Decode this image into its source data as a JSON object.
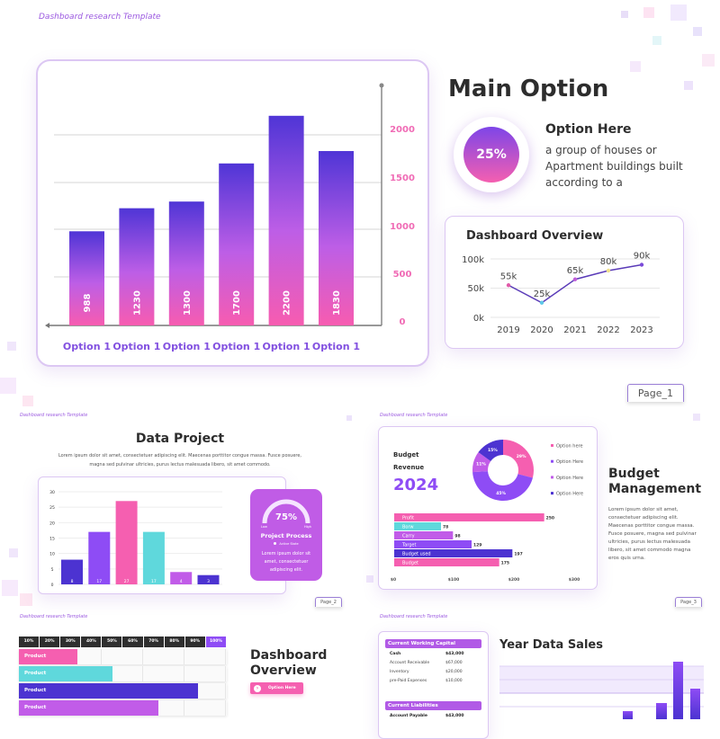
{
  "colors": {
    "pink": "#f55fb0",
    "purple": "#8e4cf5",
    "indigo": "#4c33d1",
    "cyan": "#5fd8dc",
    "violet": "#c15ce8",
    "dark": "#2d2d2d"
  },
  "template_label": "Dashboard research Template",
  "slide1": {
    "title": "Main Option",
    "gauge_value": "25%",
    "option_title": "Option Here",
    "option_text": [
      "a group of houses or",
      "Apartment buildings built",
      "according to a"
    ],
    "page": "Page_1",
    "chart_data": {
      "type": "bar",
      "categories": [
        "Option 1",
        "Option 1",
        "Option 1",
        "Option 1",
        "Option 1",
        "Option 1"
      ],
      "values": [
        988,
        1230,
        1300,
        1700,
        2200,
        1830
      ],
      "yticks": [
        "2000",
        "1500",
        "1000",
        "500",
        "0"
      ],
      "ylim": [
        0,
        2000
      ],
      "grid": true
    },
    "overview": {
      "title": "Dashboard Overview",
      "chart_data": {
        "type": "line",
        "x": [
          "2019",
          "2020",
          "2021",
          "2022",
          "2023"
        ],
        "values": [
          55,
          25,
          65,
          80,
          90
        ],
        "labels": [
          "55k",
          "25k",
          "65k",
          "80k",
          "90k"
        ],
        "yticks": [
          "100k",
          "50k",
          "0k"
        ],
        "ylim": [
          0,
          100
        ],
        "point_colors": [
          "#e05aa8",
          "#5fc8e8",
          "#c05cd8",
          "#f0e08a",
          "#7a4ad8"
        ]
      }
    }
  },
  "slide2": {
    "title": "Data Project",
    "text": [
      "Lorem ipsum dolor sit amet, consectetuer adipiscing elit. Maecenas porttitor congue massa. Fusce posuere,",
      "magna sed pulvinar ultricies, purus lectus malesuada libero, sit amet commodo."
    ],
    "chart_data": {
      "type": "bar",
      "values": [
        8,
        17,
        27,
        17,
        4,
        3
      ],
      "labels": [
        "8",
        "17",
        "27",
        "17",
        "4",
        "3"
      ],
      "yticks": [
        "30",
        "25",
        "20",
        "15",
        "10",
        "5",
        "0"
      ],
      "ylim": [
        0,
        30
      ],
      "colors": [
        "#4c33d1",
        "#8e4cf5",
        "#f55fb0",
        "#5fd8dc",
        "#c15ce8",
        "#4c33d1"
      ]
    },
    "process": {
      "value": "75%",
      "low": "Low",
      "high": "High",
      "title": "Project Process",
      "state": "Active State",
      "text": [
        "Lorem ipsum dolor sit",
        "amet, consectetuer",
        "adipiscing elit."
      ],
      "fraction": 0.75
    },
    "page": "Page_2"
  },
  "slide3": {
    "budget": "Budget",
    "revenue": "Revenue",
    "year": "2024",
    "donut": {
      "type": "pie",
      "values": [
        29,
        45,
        11,
        15
      ],
      "labels": [
        "29%",
        "45%",
        "11%",
        "15%"
      ],
      "colors": [
        "#f55fb0",
        "#8e4cf5",
        "#c15ce8",
        "#4c33d1"
      ]
    },
    "legend": [
      "Option here",
      "Option Here",
      "Option Here",
      "Option Here"
    ],
    "hbar": {
      "type": "bar",
      "categories": [
        "Profit",
        "Borw",
        "Carry",
        "Target",
        "Budget used",
        "Budget"
      ],
      "values": [
        250,
        78,
        98,
        129,
        197,
        175
      ],
      "labels": [
        "250",
        "78",
        "98",
        "129",
        "197",
        "175"
      ],
      "colors": [
        "#f55fb0",
        "#5fd8dc",
        "#c15ce8",
        "#8e4cf5",
        "#4c33d1",
        "#f55fb0"
      ],
      "xticks": [
        "$0",
        "$100",
        "$200",
        "$300"
      ],
      "xlim": [
        0,
        300
      ]
    },
    "title": [
      "Budget",
      "Management"
    ],
    "text": [
      "Lorem ipsum dolor sit amet,",
      "consectetuer adipiscing elit.",
      "Maecenas porttitor congue massa.",
      "Fusce posuere, magna sed pulvinar",
      "ultricies, purus lectus malesuada",
      "libero, sit amet commodo magna",
      "eros quis urna."
    ],
    "page": "Page_3"
  },
  "slide4": {
    "headers": [
      "10%",
      "20%",
      "30%",
      "40%",
      "50%",
      "60%",
      "70%",
      "80%",
      "90%",
      "100%"
    ],
    "rows": [
      {
        "label": "Product",
        "value": 0.28,
        "color": "#f55fb0"
      },
      {
        "label": "Product",
        "value": 0.45,
        "color": "#5fd8dc"
      },
      {
        "label": "Product",
        "value": 0.86,
        "color": "#4c33d1"
      },
      {
        "label": "Product",
        "value": 0.67,
        "color": "#c15ce8"
      }
    ],
    "title": [
      "Dashboard",
      "Overview"
    ],
    "button": "Option Here"
  },
  "slide5": {
    "capital_title": "Current Working Capital",
    "capital_rows": [
      [
        "Cash",
        "$43,000"
      ],
      [
        "Account Receivable",
        "$67,000"
      ],
      [
        "Inventory",
        "$20,000"
      ],
      [
        "pre-Paid Expenses",
        "$10,000"
      ]
    ],
    "liab_title": "Current Liabilities",
    "liab_rows": [
      [
        "Account Payable",
        "$43,000"
      ]
    ],
    "title": "Year Data Sales"
  }
}
